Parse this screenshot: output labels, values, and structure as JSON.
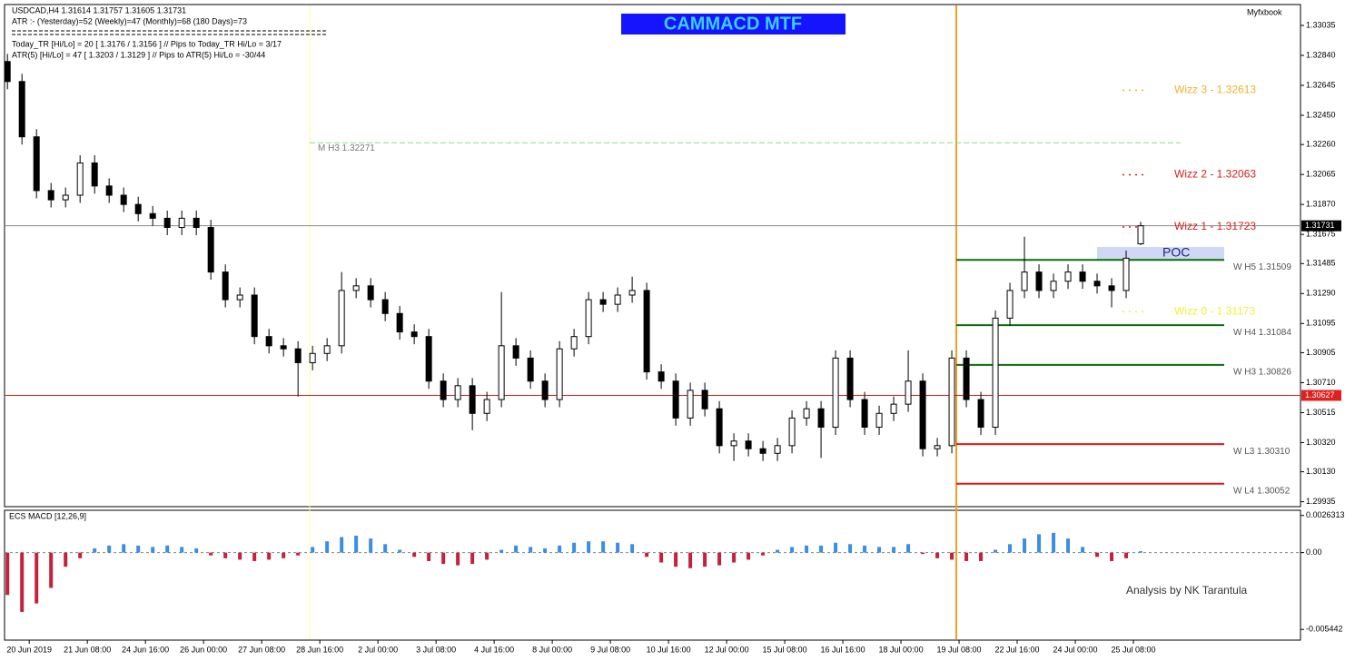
{
  "header": {
    "symbol_line": "USDCAD,H4  1.31614 1.31757 1.31605 1.31731",
    "atr_line": "ATR :- (Yesterday)=52      (Weekly)=47      (Monthly)=68      (180 Days)=73",
    "today_tr_line": "Today_TR [Hi/Lo] = 20 [ 1.3176 / 1.3156 ]  // Pips to Today_TR Hi/Lo  = 3/17",
    "atr5_line": "ATR(5)      [Hi/Lo] = 47 [ 1.3203 / 1.3129 ]  // Pips to ATR(5) Hi/Lo  = -30/44"
  },
  "chart_data": [
    {
      "type": "candlestick",
      "title": "CAMMACD MTF",
      "watermark": "Myfxbook",
      "poc_label": "POC",
      "up_color": "#ffffff",
      "down_color": "#000000",
      "open": [
        1.328,
        1.3267,
        1.3231,
        1.3196,
        1.319,
        1.3193,
        1.3214,
        1.3199,
        1.3193,
        1.3187,
        1.3181,
        1.3178,
        1.3172,
        1.3178,
        1.3172,
        1.3143,
        1.3125,
        1.3128,
        1.3101,
        1.3095,
        1.3093,
        1.3084,
        1.309,
        1.3095,
        1.3131,
        1.3134,
        1.3125,
        1.3116,
        1.3104,
        1.3101,
        1.3072,
        1.306,
        1.3069,
        1.3051,
        1.306,
        1.3095,
        1.3087,
        1.3072,
        1.306,
        1.3093,
        1.3101,
        1.3125,
        1.3122,
        1.3128,
        1.3131,
        1.3078,
        1.3072,
        1.3048,
        1.3066,
        1.3054,
        1.303,
        1.3033,
        1.3028,
        1.3025,
        1.303,
        1.3048,
        1.3054,
        1.3042,
        1.3087,
        1.306,
        1.3042,
        1.3051,
        1.3057,
        1.3072,
        1.3028,
        1.303,
        1.3087,
        1.306,
        1.3042,
        1.3113,
        1.3131,
        1.3143,
        1.3131,
        1.3137,
        1.3143,
        1.3137,
        1.3134,
        1.3131,
        1.31614
      ],
      "high": [
        1.3285,
        1.3272,
        1.3236,
        1.3201,
        1.3198,
        1.3219,
        1.3219,
        1.3204,
        1.3198,
        1.3192,
        1.3186,
        1.3183,
        1.3183,
        1.3183,
        1.3177,
        1.3148,
        1.3133,
        1.3133,
        1.3106,
        1.31,
        1.3098,
        1.3095,
        1.31,
        1.3143,
        1.3139,
        1.3139,
        1.313,
        1.3121,
        1.3109,
        1.3106,
        1.3077,
        1.3074,
        1.3074,
        1.3065,
        1.313,
        1.31,
        1.3092,
        1.3077,
        1.3098,
        1.3106,
        1.313,
        1.313,
        1.3133,
        1.314,
        1.3136,
        1.3083,
        1.3077,
        1.3071,
        1.3071,
        1.3059,
        1.3038,
        1.3038,
        1.3033,
        1.3035,
        1.3053,
        1.3059,
        1.3059,
        1.3092,
        1.3092,
        1.3065,
        1.3056,
        1.3062,
        1.3092,
        1.3077,
        1.3035,
        1.3092,
        1.3092,
        1.3065,
        1.3118,
        1.3136,
        1.3166,
        1.3148,
        1.3142,
        1.3148,
        1.3148,
        1.3142,
        1.3139,
        1.3157,
        1.31757
      ],
      "low": [
        1.3262,
        1.3226,
        1.3191,
        1.3185,
        1.3185,
        1.3188,
        1.3194,
        1.3188,
        1.3182,
        1.3176,
        1.3173,
        1.3167,
        1.3167,
        1.3167,
        1.3138,
        1.312,
        1.312,
        1.3096,
        1.309,
        1.3088,
        1.3062,
        1.3079,
        1.3085,
        1.309,
        1.3126,
        1.312,
        1.3111,
        1.3099,
        1.3096,
        1.3067,
        1.3055,
        1.3055,
        1.304,
        1.3046,
        1.3055,
        1.3082,
        1.3067,
        1.3055,
        1.3055,
        1.3088,
        1.3096,
        1.3117,
        1.3117,
        1.3123,
        1.3073,
        1.3067,
        1.3043,
        1.3043,
        1.3049,
        1.3025,
        1.302,
        1.3023,
        1.302,
        1.302,
        1.3025,
        1.3043,
        1.3022,
        1.3037,
        1.3055,
        1.3037,
        1.3037,
        1.3046,
        1.3052,
        1.3023,
        1.3023,
        1.3025,
        1.3055,
        1.3037,
        1.3037,
        1.3108,
        1.3126,
        1.3126,
        1.3126,
        1.3132,
        1.3132,
        1.3129,
        1.312,
        1.3126,
        1.31605
      ],
      "close": [
        1.3267,
        1.3231,
        1.3196,
        1.319,
        1.3193,
        1.3214,
        1.3199,
        1.3193,
        1.3187,
        1.3181,
        1.3178,
        1.3172,
        1.3178,
        1.3172,
        1.3143,
        1.3125,
        1.3128,
        1.3101,
        1.3095,
        1.3093,
        1.3084,
        1.309,
        1.3095,
        1.3131,
        1.3134,
        1.3125,
        1.3116,
        1.3104,
        1.3101,
        1.3072,
        1.306,
        1.3069,
        1.3051,
        1.306,
        1.3095,
        1.3087,
        1.3072,
        1.306,
        1.3093,
        1.3101,
        1.3125,
        1.3122,
        1.3128,
        1.3131,
        1.3078,
        1.3072,
        1.3048,
        1.3066,
        1.3054,
        1.303,
        1.3033,
        1.3028,
        1.3025,
        1.303,
        1.3048,
        1.3054,
        1.3042,
        1.3087,
        1.306,
        1.3042,
        1.3051,
        1.3057,
        1.3072,
        1.3028,
        1.303,
        1.3087,
        1.306,
        1.3042,
        1.3113,
        1.3131,
        1.3143,
        1.3131,
        1.3137,
        1.3143,
        1.3137,
        1.3134,
        1.3131,
        1.3152,
        1.31731
      ],
      "xlim": [
        -0.2,
        89
      ],
      "xticks": [
        {
          "value": 1.5,
          "label": "20 Jun 2019"
        },
        {
          "value": 5.5,
          "label": "21 Jun 08:00"
        },
        {
          "value": 9.5,
          "label": "24 Jun 16:00"
        },
        {
          "value": 13.5,
          "label": "26 Jun 00:00"
        },
        {
          "value": 17.5,
          "label": "27 Jun 08:00"
        },
        {
          "value": 21.5,
          "label": "28 Jun 16:00"
        },
        {
          "value": 25.5,
          "label": "2 Jul 00:00"
        },
        {
          "value": 29.5,
          "label": "3 Jul 08:00"
        },
        {
          "value": 33.5,
          "label": "4 Jul 16:00"
        },
        {
          "value": 37.5,
          "label": "8 Jul 00:00"
        },
        {
          "value": 41.5,
          "label": "9 Jul 08:00"
        },
        {
          "value": 45.5,
          "label": "10 Jul 16:00"
        },
        {
          "value": 49.5,
          "label": "12 Jul 00:00"
        },
        {
          "value": 53.5,
          "label": "15 Jul 08:00"
        },
        {
          "value": 57.5,
          "label": "16 Jul 16:00"
        },
        {
          "value": 61.5,
          "label": "18 Jul 00:00"
        },
        {
          "value": 65.5,
          "label": "19 Jul 08:00"
        },
        {
          "value": 69.5,
          "label": "22 Jul 16:00"
        },
        {
          "value": 73.5,
          "label": "24 Jul 00:00"
        },
        {
          "value": 77.5,
          "label": "25 Jul 08:00"
        }
      ],
      "ylim": [
        1.29903,
        1.33171
      ],
      "yticks": [
        1.33035,
        {
          "value": 1.3284,
          "label": "1.32840"
        },
        1.32645,
        {
          "value": 1.3245,
          "label": "1.32450"
        },
        {
          "value": 1.3226,
          "label": "1.32260"
        },
        1.32065,
        {
          "value": 1.3187,
          "label": "1.31870"
        },
        1.31675,
        1.31485,
        {
          "value": 1.3129,
          "label": "1.31290"
        },
        1.31095,
        1.30905,
        {
          "value": 1.3071,
          "label": "1.30710"
        },
        1.30515,
        {
          "value": 1.3032,
          "label": "1.30320"
        },
        {
          "value": 1.3013,
          "label": "1.30130"
        },
        1.29935
      ],
      "price_markers": [
        {
          "value": 1.31731,
          "color": "#000000"
        },
        {
          "value": 1.30627,
          "color": "#e02020"
        }
      ],
      "monthly_level": {
        "label": "M H3 1.32271",
        "value": 1.32271,
        "color": "#8fd88f"
      },
      "wizz_levels": [
        {
          "label": "Wizz 3 - 1.32613",
          "value": 1.32613,
          "color": "#f0b030"
        },
        {
          "label": "Wizz 2 - 1.32063",
          "value": 1.32063,
          "color": "#d42020"
        },
        {
          "label": "Wizz 1 - 1.31723",
          "value": 1.31723,
          "color": "#d42020"
        },
        {
          "label": "Wizz 0 - 1.31173",
          "value": 1.31173,
          "color": "#f2f230"
        }
      ],
      "levels": [
        {
          "label": "W H5 1.31509",
          "value": 1.31509,
          "color": "#0a6e0a"
        },
        {
          "label": "W H4 1.31084",
          "value": 1.31084,
          "color": "#0a6e0a"
        },
        {
          "label": "W H3 1.30826",
          "value": 1.30826,
          "color": "#0a6e0a"
        },
        {
          "label": "W L3 1.30310",
          "value": 1.3031,
          "color": "#e01818"
        },
        {
          "label": "W L4 1.30052",
          "value": 1.30052,
          "color": "#e01818"
        }
      ]
    },
    {
      "type": "histogram",
      "title": "ECS MACD [12,26,9]",
      "annotation": "Analysis by NK Tarantula",
      "positive_color": "#3a8ee6",
      "negative_color": "#c8203c",
      "values": [
        -0.003,
        -0.0042,
        -0.0036,
        -0.0025,
        -0.001,
        -0.0004,
        0.0003,
        0.0005,
        0.0006,
        0.0005,
        0.0004,
        0.0005,
        0.0004,
        0.0003,
        -0.0002,
        -0.0004,
        -0.0005,
        -0.0006,
        -0.0005,
        -0.0004,
        -0.0002,
        0.0004,
        0.0008,
        0.0011,
        0.0012,
        0.001,
        0.0006,
        0.0002,
        -0.0003,
        -0.0006,
        -0.0008,
        -0.0009,
        -0.0008,
        -0.0005,
        0.0002,
        0.0005,
        0.0004,
        0.0003,
        0.0005,
        0.0007,
        0.0008,
        0.0008,
        0.0007,
        0.0006,
        -0.0003,
        -0.0007,
        -0.001,
        -0.0011,
        -0.001,
        -0.0009,
        -0.0007,
        -0.0005,
        -0.0002,
        0.0002,
        0.0004,
        0.0005,
        0.0005,
        0.0007,
        0.0006,
        0.0005,
        0.0004,
        0.0004,
        0.0006,
        -0.0001,
        -0.0004,
        -0.0005,
        -0.0006,
        -0.0006,
        0.0002,
        0.0006,
        0.001,
        0.0013,
        0.0014,
        0.001,
        0.0004,
        -0.0003,
        -0.0006,
        -0.0004,
        0.0001
      ],
      "ylim": [
        -0.0062,
        0.003
      ],
      "yticks": [
        0.0026313,
        {
          "value": 0,
          "label": "0.00"
        },
        -0.005442
      ]
    }
  ]
}
